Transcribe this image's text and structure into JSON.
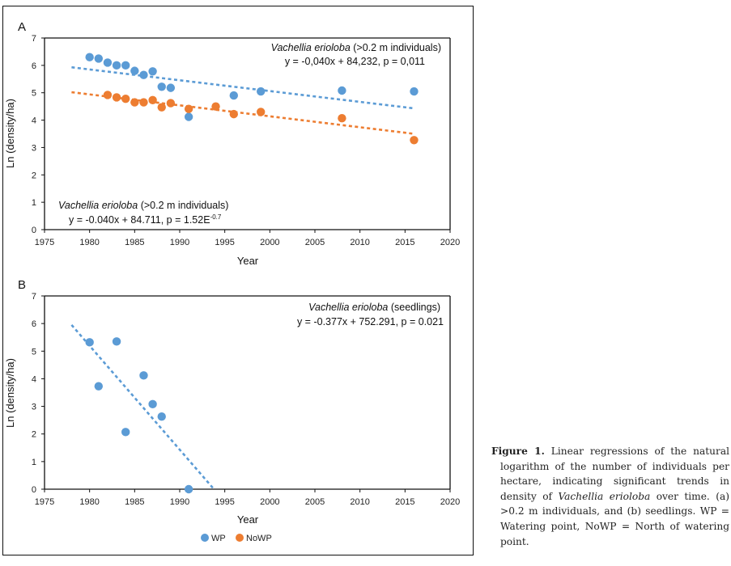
{
  "figure": {
    "caption": {
      "label": "Figure 1.",
      "text_before_italic": " Linear regressions of the natural logarithm of the number of individuals per hectare, indicating significant trends in density of ",
      "italic": "Vachellia erioloba",
      "text_after_italic": " over time. (a) >0.2 m individuals, and (b) seedlings. WP = Watering point, NoWP = North of watering point."
    },
    "legend": [
      {
        "name": "WP",
        "color": "#5B9BD5"
      },
      {
        "name": "NoWP",
        "color": "#ED7D31"
      }
    ]
  },
  "chart_data": [
    {
      "panel": "A",
      "type": "scatter",
      "xlabel": "Year",
      "ylabel": "Ln (density/ha)",
      "xlim": [
        1975,
        2020
      ],
      "ylim": [
        0,
        7
      ],
      "xticks": [
        1975,
        1980,
        1985,
        1990,
        1995,
        2000,
        2005,
        2010,
        2015,
        2020
      ],
      "yticks": [
        0,
        1,
        2,
        3,
        4,
        5,
        6,
        7
      ],
      "grid": false,
      "series": [
        {
          "name": "WP",
          "color": "#5B9BD5",
          "x": [
            1980,
            1981,
            1982,
            1983,
            1984,
            1985,
            1986,
            1987,
            1988,
            1989,
            1991,
            1996,
            1999,
            2008,
            2016
          ],
          "y": [
            6.3,
            6.25,
            6.1,
            6.0,
            6.0,
            5.8,
            5.65,
            5.78,
            5.22,
            5.18,
            4.12,
            4.9,
            5.05,
            5.08,
            5.05
          ],
          "trendline": {
            "x": [
              1978,
              2016
            ],
            "y": [
              5.93,
              4.43
            ]
          }
        },
        {
          "name": "NoWP",
          "color": "#ED7D31",
          "x": [
            1982,
            1983,
            1984,
            1985,
            1986,
            1987,
            1988,
            1989,
            1991,
            1994,
            1996,
            1999,
            2008,
            2016
          ],
          "y": [
            4.92,
            4.83,
            4.78,
            4.65,
            4.65,
            4.73,
            4.47,
            4.62,
            4.41,
            4.5,
            4.22,
            4.3,
            4.07,
            3.27
          ],
          "trendline": {
            "x": [
              1978,
              2016
            ],
            "y": [
              5.02,
              3.5
            ]
          }
        }
      ],
      "annotations": [
        {
          "species": "Vachellia erioloba",
          "suffix": " (>0.2 m individuals)",
          "equation": "y = -0,040x + 84,232, p = 0,011",
          "position": "top-right"
        },
        {
          "species": "Vachellia erioloba",
          "suffix": " (>0.2 m individuals)",
          "equation": "y = -0.040x + 84.711, p = 1.52E",
          "equation_sup": "-0.7",
          "position": "bottom-left"
        }
      ]
    },
    {
      "panel": "B",
      "type": "scatter",
      "xlabel": "Year",
      "ylabel": "Ln (density/ha)",
      "xlim": [
        1975,
        2020
      ],
      "ylim": [
        0,
        7
      ],
      "xticks": [
        1975,
        1980,
        1985,
        1990,
        1995,
        2000,
        2005,
        2010,
        2015,
        2020
      ],
      "yticks": [
        0,
        1,
        2,
        3,
        4,
        5,
        6,
        7
      ],
      "grid": false,
      "series": [
        {
          "name": "WP",
          "color": "#5B9BD5",
          "x": [
            1980,
            1981,
            1983,
            1984,
            1986,
            1987,
            1988,
            1991
          ],
          "y": [
            5.32,
            3.73,
            5.35,
            2.07,
            4.12,
            3.08,
            2.63,
            0.0
          ],
          "trendline": {
            "x": [
              1978,
              1993.8
            ],
            "y": [
              5.95,
              0.0
            ]
          }
        }
      ],
      "annotations": [
        {
          "species": "Vachellia erioloba",
          "suffix": " (seedlings)",
          "equation": "y = -0.377x + 752.291, p = 0.021",
          "position": "top-right"
        }
      ]
    }
  ]
}
